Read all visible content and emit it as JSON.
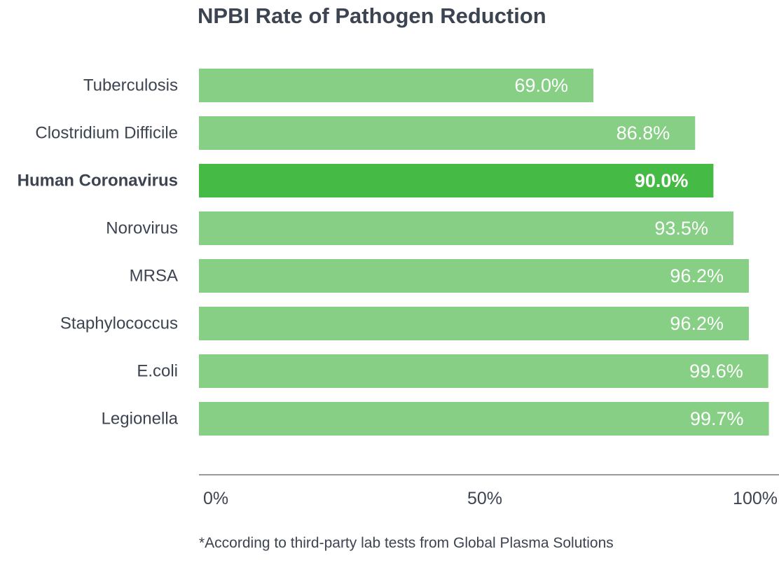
{
  "chart_data": {
    "type": "bar",
    "orientation": "horizontal",
    "title": "NPBI Rate of Pathogen Reduction",
    "categories": [
      "Tuberculosis",
      "Clostridium Difficile",
      "Human Coronavirus",
      "Norovirus",
      "MRSA",
      "Staphylococcus",
      "E.coli",
      "Legionella"
    ],
    "values": [
      69.0,
      86.8,
      90.0,
      93.5,
      96.2,
      96.2,
      99.6,
      99.7
    ],
    "value_labels": [
      "69.0%",
      "86.8%",
      "90.0%",
      "93.5%",
      "96.2%",
      "96.2%",
      "99.6%",
      "99.7%"
    ],
    "highlighted_category": "Human Coronavirus",
    "xlim": [
      0,
      100
    ],
    "x_ticks": [
      0,
      50,
      100
    ],
    "x_tick_labels": [
      "0%",
      "50%",
      "100%"
    ],
    "footnote": "*According to third-party lab tests from Global Plasma Solutions",
    "grid": false,
    "legend": "none",
    "colors": {
      "bar": "#86cf85",
      "bar_highlight": "#45ba44",
      "text": "#3d4451",
      "axis": "#9a9a9a",
      "value_text": "#ffffff"
    }
  }
}
